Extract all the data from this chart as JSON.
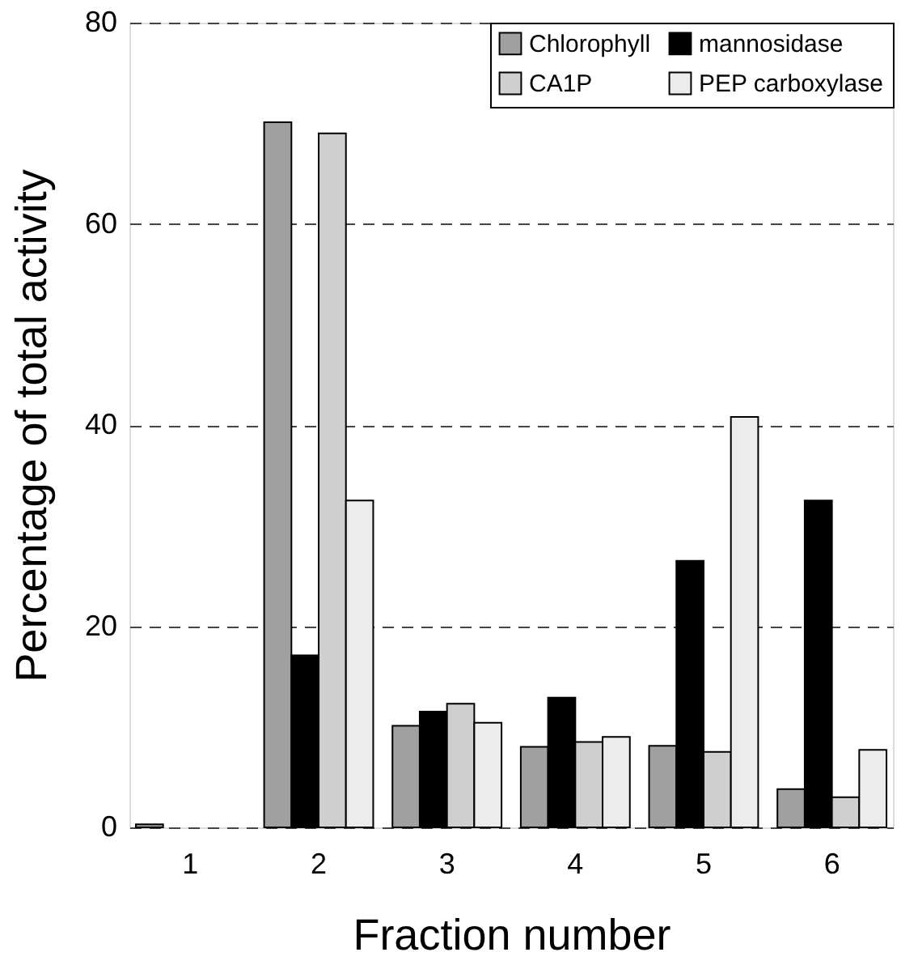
{
  "chart_data": {
    "type": "bar",
    "xlabel": "Fraction number",
    "ylabel": "Percentage of total activity",
    "categories": [
      "1",
      "2",
      "3",
      "4",
      "5",
      "6"
    ],
    "series": [
      {
        "name": "Chlorophyll",
        "color": "#a0a0a0",
        "values": [
          0.3,
          70.1,
          10.1,
          8.0,
          8.1,
          3.8
        ]
      },
      {
        "name": "mannosidase",
        "color": "#000000",
        "values": [
          0,
          17.1,
          11.5,
          12.9,
          26.5,
          32.5
        ]
      },
      {
        "name": "CA1P",
        "color": "#cfcfcf",
        "values": [
          0,
          69.0,
          12.3,
          8.5,
          7.5,
          3.0
        ]
      },
      {
        "name": "PEP carboxylase",
        "color": "#ececec",
        "values": [
          0,
          32.5,
          10.4,
          9.0,
          40.8,
          7.7
        ]
      }
    ],
    "ylim": [
      0,
      80
    ],
    "yticks": [
      0,
      20,
      40,
      60,
      80
    ],
    "grid": "y",
    "legend": "top right"
  }
}
